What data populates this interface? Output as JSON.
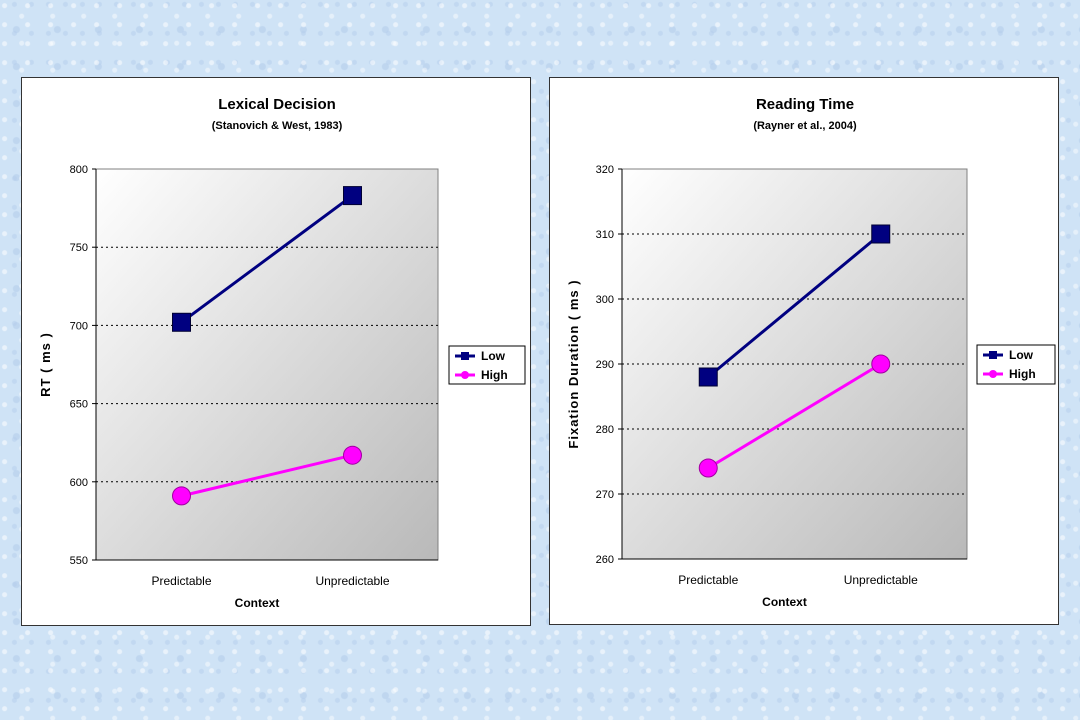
{
  "chart_data": [
    {
      "type": "line",
      "title": "Lexical Decision",
      "subtitle": "(Stanovich & West, 1983)",
      "xlabel": "Context",
      "ylabel": "RT  ( ms )",
      "categories": [
        "Predictable",
        "Unpredictable"
      ],
      "ylim": [
        550,
        800
      ],
      "yticks": [
        550,
        600,
        650,
        700,
        750,
        800
      ],
      "grid": true,
      "legend_position": "right",
      "series": [
        {
          "name": "Low",
          "values": [
            702,
            783
          ],
          "color": "#000080",
          "marker": "square"
        },
        {
          "name": "High",
          "values": [
            591,
            617
          ],
          "color": "#ff00ff",
          "marker": "circle"
        }
      ]
    },
    {
      "type": "line",
      "title": "Reading Time",
      "subtitle": "(Rayner et al., 2004)",
      "xlabel": "Context",
      "ylabel": "Fixation Duration  ( ms )",
      "categories": [
        "Predictable",
        "Unpredictable"
      ],
      "ylim": [
        260,
        320
      ],
      "yticks": [
        260,
        270,
        280,
        290,
        300,
        310,
        320
      ],
      "grid": true,
      "legend_position": "right",
      "series": [
        {
          "name": "Low",
          "values": [
            288,
            310
          ],
          "color": "#000080",
          "marker": "square"
        },
        {
          "name": "High",
          "values": [
            274,
            290
          ],
          "color": "#ff00ff",
          "marker": "circle"
        }
      ]
    }
  ]
}
